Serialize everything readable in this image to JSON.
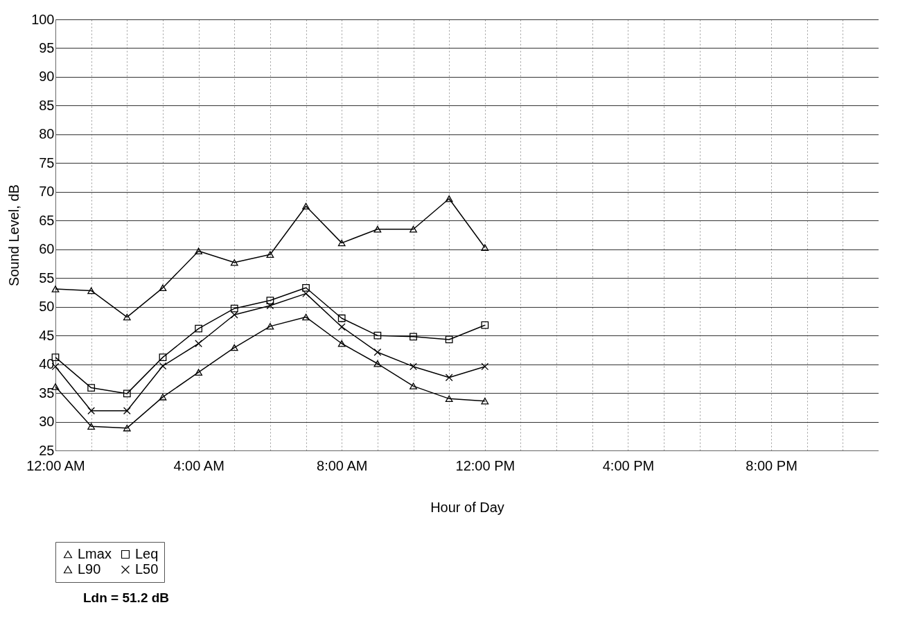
{
  "chart_data": {
    "type": "line",
    "xlabel": "Hour of Day",
    "ylabel": "Sound Level, dB",
    "x": [
      0,
      1,
      2,
      3,
      4,
      5,
      6,
      7,
      8,
      9,
      10,
      11,
      12
    ],
    "series": [
      {
        "name": "Lmax",
        "color": "#000000",
        "marker": "triangle",
        "values": [
          53.1,
          52.8,
          48.2,
          53.3,
          59.7,
          57.7,
          59.1,
          67.5,
          61.1,
          63.5,
          63.5,
          68.8,
          60.3
        ]
      },
      {
        "name": "Leq",
        "color": "#000000",
        "marker": "square",
        "values": [
          41.2,
          35.9,
          34.9,
          41.2,
          46.2,
          49.7,
          51.1,
          53.3,
          48.0,
          45.0,
          44.8,
          44.3,
          46.8
        ]
      },
      {
        "name": "L90",
        "color": "#000000",
        "marker": "triangle",
        "values": [
          36.1,
          29.2,
          28.9,
          34.3,
          38.6,
          42.9,
          46.6,
          48.2,
          43.6,
          40.1,
          36.2,
          34.0,
          33.6
        ]
      },
      {
        "name": "L50",
        "color": "#000000",
        "marker": "cross",
        "values": [
          39.6,
          31.9,
          31.9,
          39.7,
          43.6,
          48.6,
          50.2,
          52.3,
          46.5,
          42.1,
          39.6,
          37.7,
          39.6
        ]
      }
    ],
    "xlim": [
      0,
      23
    ],
    "xticks": [
      {
        "value": 0,
        "label": "12:00 AM"
      },
      {
        "value": 1,
        "label": null
      },
      {
        "value": 2,
        "label": null
      },
      {
        "value": 3,
        "label": null
      },
      {
        "value": 4,
        "label": "4:00 AM"
      },
      {
        "value": 5,
        "label": null
      },
      {
        "value": 6,
        "label": null
      },
      {
        "value": 7,
        "label": null
      },
      {
        "value": 8,
        "label": "8:00 AM"
      },
      {
        "value": 9,
        "label": null
      },
      {
        "value": 10,
        "label": null
      },
      {
        "value": 11,
        "label": null
      },
      {
        "value": 12,
        "label": "12:00 PM"
      },
      {
        "value": 13,
        "label": null
      },
      {
        "value": 14,
        "label": null
      },
      {
        "value": 15,
        "label": null
      },
      {
        "value": 16,
        "label": "4:00 PM"
      },
      {
        "value": 17,
        "label": null
      },
      {
        "value": 18,
        "label": null
      },
      {
        "value": 19,
        "label": null
      },
      {
        "value": 20,
        "label": "8:00 PM"
      },
      {
        "value": 21,
        "label": null
      },
      {
        "value": 22,
        "label": null
      }
    ],
    "ylim": [
      25,
      100
    ],
    "yticks": [
      25,
      30,
      35,
      40,
      45,
      50,
      55,
      60,
      65,
      70,
      75,
      80,
      85,
      90,
      95,
      100
    ],
    "grid": true,
    "legend": "bottom",
    "line_style": "solid",
    "annotations": [
      "Ldn =  51.2  dB"
    ]
  }
}
